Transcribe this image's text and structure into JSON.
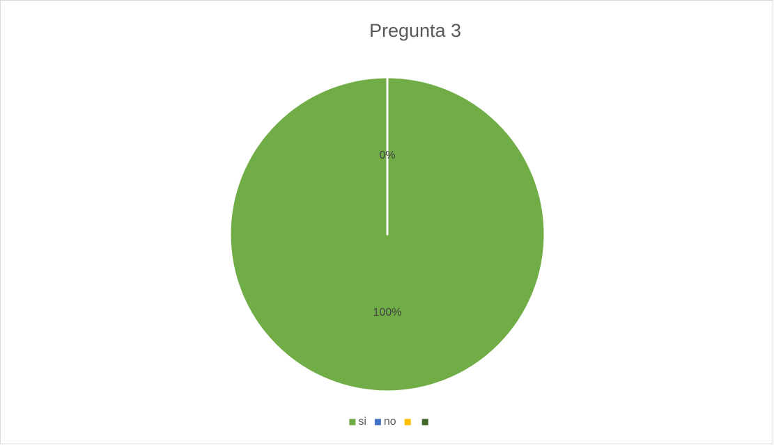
{
  "chart_data": {
    "type": "pie",
    "title": "Pregunta 3",
    "categories": [
      "si",
      "no",
      null,
      null
    ],
    "values": [
      100,
      0,
      null,
      null
    ],
    "value_labels": [
      "100%",
      "0%",
      null,
      null
    ],
    "colors": [
      "#70ad47",
      "#4472c4",
      "#ffc000",
      "#43682b"
    ],
    "start_angle": 0,
    "direction": "clockwise",
    "legend": "bottom"
  }
}
